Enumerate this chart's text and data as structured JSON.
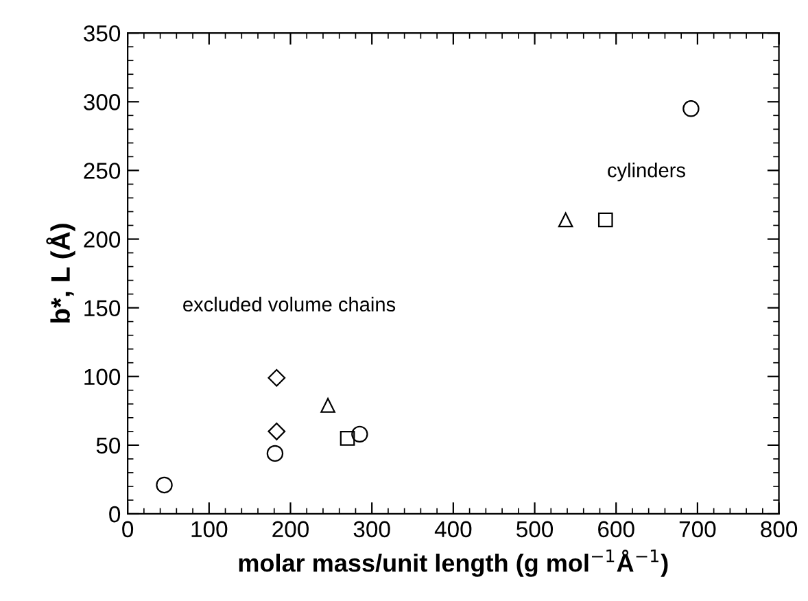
{
  "chart_data": {
    "type": "scatter",
    "xlabel": "molar mass/unit length (g mol$^{−1}$Å$^{−1}$)",
    "ylabel": "b*, L (Å)",
    "xlim": [
      0,
      800
    ],
    "xticks": [
      0,
      100,
      200,
      300,
      400,
      500,
      600,
      700,
      800
    ],
    "ylim": [
      0,
      350
    ],
    "yticks": [
      0,
      50,
      100,
      150,
      200,
      250,
      300,
      350
    ],
    "grid": false,
    "series": [
      {
        "color": "#000000",
        "marker": "circle",
        "x": [
          45,
          181,
          285,
          692
        ],
        "values": [
          21,
          44,
          58,
          295
        ]
      },
      {
        "color": "#000000",
        "marker": "diamond",
        "x": [
          183,
          183
        ],
        "values": [
          99,
          60
        ]
      },
      {
        "color": "#000000",
        "marker": "triangle",
        "x": [
          246,
          538
        ],
        "values": [
          79,
          214
        ]
      },
      {
        "color": "#000000",
        "marker": "square",
        "x": [
          270,
          587
        ],
        "values": [
          55,
          214
        ]
      }
    ],
    "annotations": [
      "excluded volume chains",
      "cylinders"
    ]
  }
}
